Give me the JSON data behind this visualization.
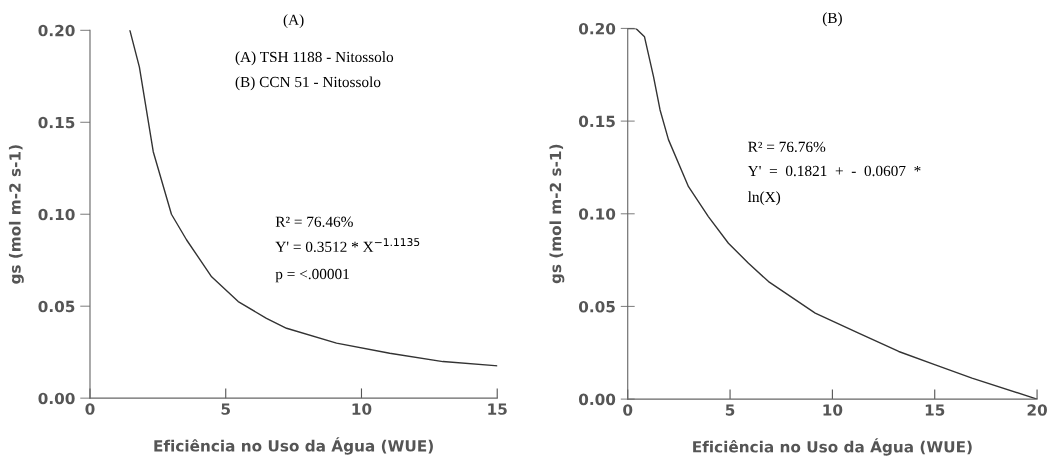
{
  "chart_data": [
    {
      "type": "line",
      "title": "(A)",
      "xlabel": "Eficiência no Uso da Água (WUE)",
      "ylabel": "gs (mol m-2 s-1)",
      "series": [
        {
          "color": "#333333",
          "x": [
            1.47,
            1.82,
            2.33,
            3.0,
            3.56,
            4.48,
            5.46,
            6.5,
            7.24,
            9.08,
            11.04,
            13.0,
            15.0
          ],
          "values": [
            0.2,
            0.18,
            0.134,
            0.1,
            0.086,
            0.066,
            0.0525,
            0.0434,
            0.038,
            0.0299,
            0.0244,
            0.0199,
            0.0176
          ]
        }
      ],
      "xlim": [
        0,
        15
      ],
      "xticks": [
        0,
        5,
        10,
        15
      ],
      "ylim": [
        0,
        0.2
      ],
      "yticks": [
        {
          "value": 0,
          "label": "0.00"
        },
        {
          "value": 0.05,
          "label": "0.05"
        },
        {
          "value": 0.1,
          "label": "0.10"
        },
        {
          "value": 0.15,
          "label": "0.15"
        },
        {
          "value": 0.2,
          "label": "0.20"
        }
      ],
      "annotations": [
        "(A) TSH 1188 - Nitossolo",
        "(B) CCN 51 - Nitossolo",
        "R² = 76.46%",
        "Y' = 0.3512 * X$^{−1.1135}$",
        "p = <.00001"
      ]
    },
    {
      "type": "line",
      "title": "(B)",
      "xlabel": "Eficiência no Uso da Água (WUE)",
      "ylabel": "gs (mol m-2 s-1)",
      "series": [
        {
          "color": "#333333",
          "x": [
            0,
            0.4,
            0.82,
            1.26,
            1.58,
            1.99,
            2.97,
            3.94,
            4.92,
            5.9,
            6.88,
            9.16,
            11.28,
            13.24,
            15.03,
            16.82,
            20
          ],
          "values": [
            0.2,
            0.2,
            0.1955,
            0.174,
            0.156,
            0.14,
            0.1146,
            0.0985,
            0.0841,
            0.0733,
            0.0634,
            0.0464,
            0.0356,
            0.0257,
            0.0185,
            0.0113,
            0.0
          ]
        }
      ],
      "xlim": [
        0,
        20
      ],
      "xticks": [
        0,
        5,
        10,
        15,
        20
      ],
      "ylim": [
        0,
        0.2
      ],
      "yticks": [
        {
          "value": 0,
          "label": "0.00"
        },
        {
          "value": 0.05,
          "label": "0.05"
        },
        {
          "value": 0.1,
          "label": "0.10"
        },
        {
          "value": 0.15,
          "label": "0.15"
        },
        {
          "value": 0.2,
          "label": "0.20"
        }
      ],
      "annotations": [
        "R² = 76.76%",
        "Y'  =  0.1821  +  -  0.0607  *",
        "ln(X)"
      ]
    }
  ]
}
